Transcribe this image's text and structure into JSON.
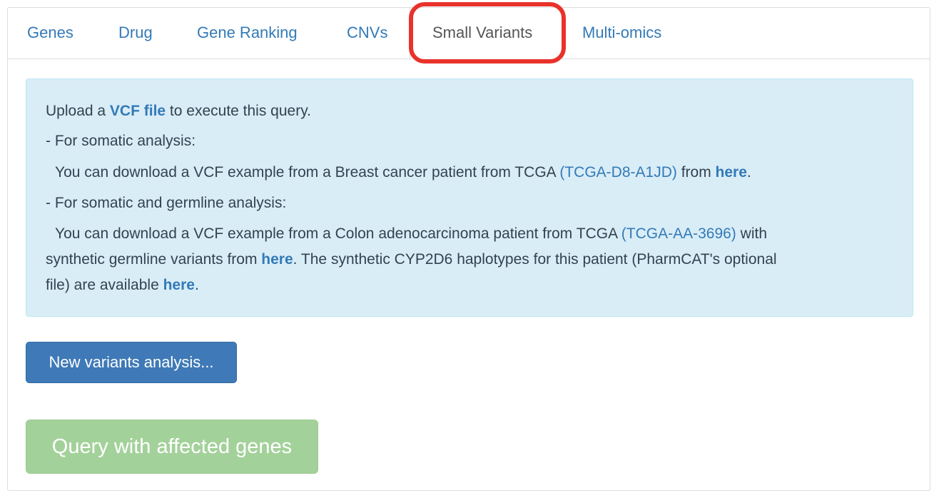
{
  "tabs": [
    {
      "label": "Genes",
      "active": false
    },
    {
      "label": "Drug",
      "active": false
    },
    {
      "label": "Gene Ranking",
      "active": false
    },
    {
      "label": "CNVs",
      "active": false
    },
    {
      "label": "Small Variants",
      "active": true
    },
    {
      "label": "Multi-omics",
      "active": false
    }
  ],
  "info": {
    "line1_prefix": "Upload a ",
    "line1_link": "VCF file",
    "line1_suffix": " to execute this query.",
    "somatic_heading": "- For somatic analysis:",
    "somatic_text": "You can download a VCF example from a Breast cancer patient from TCGA ",
    "somatic_case_link": "(TCGA-D8-A1JD)",
    "somatic_mid": " from ",
    "somatic_here_link": "here",
    "somatic_end": ".",
    "germline_heading": "- For somatic and germline analysis:",
    "germline_text": "You can download a VCF example from a Colon adenocarcinoma patient from TCGA ",
    "germline_case_link": "(TCGA-AA-3696)",
    "germline_with": " with",
    "germline_line2_prefix": "synthetic germline variants from ",
    "germline_here_link": "here",
    "germline_line2_suffix": ". The synthetic CYP2D6 haplotypes for this patient (PharmCAT's optional",
    "germline_line3_prefix": "file) are available ",
    "germline_here2_link": "here",
    "germline_line3_suffix": "."
  },
  "buttons": {
    "new_analysis": "New variants analysis...",
    "query_genes": "Query with affected genes"
  },
  "colors": {
    "link": "#337ab7",
    "highlight": "#e8322a",
    "alert_bg": "#d9edf7",
    "primary": "#3f79b7",
    "success_disabled": "#a3d19a"
  }
}
